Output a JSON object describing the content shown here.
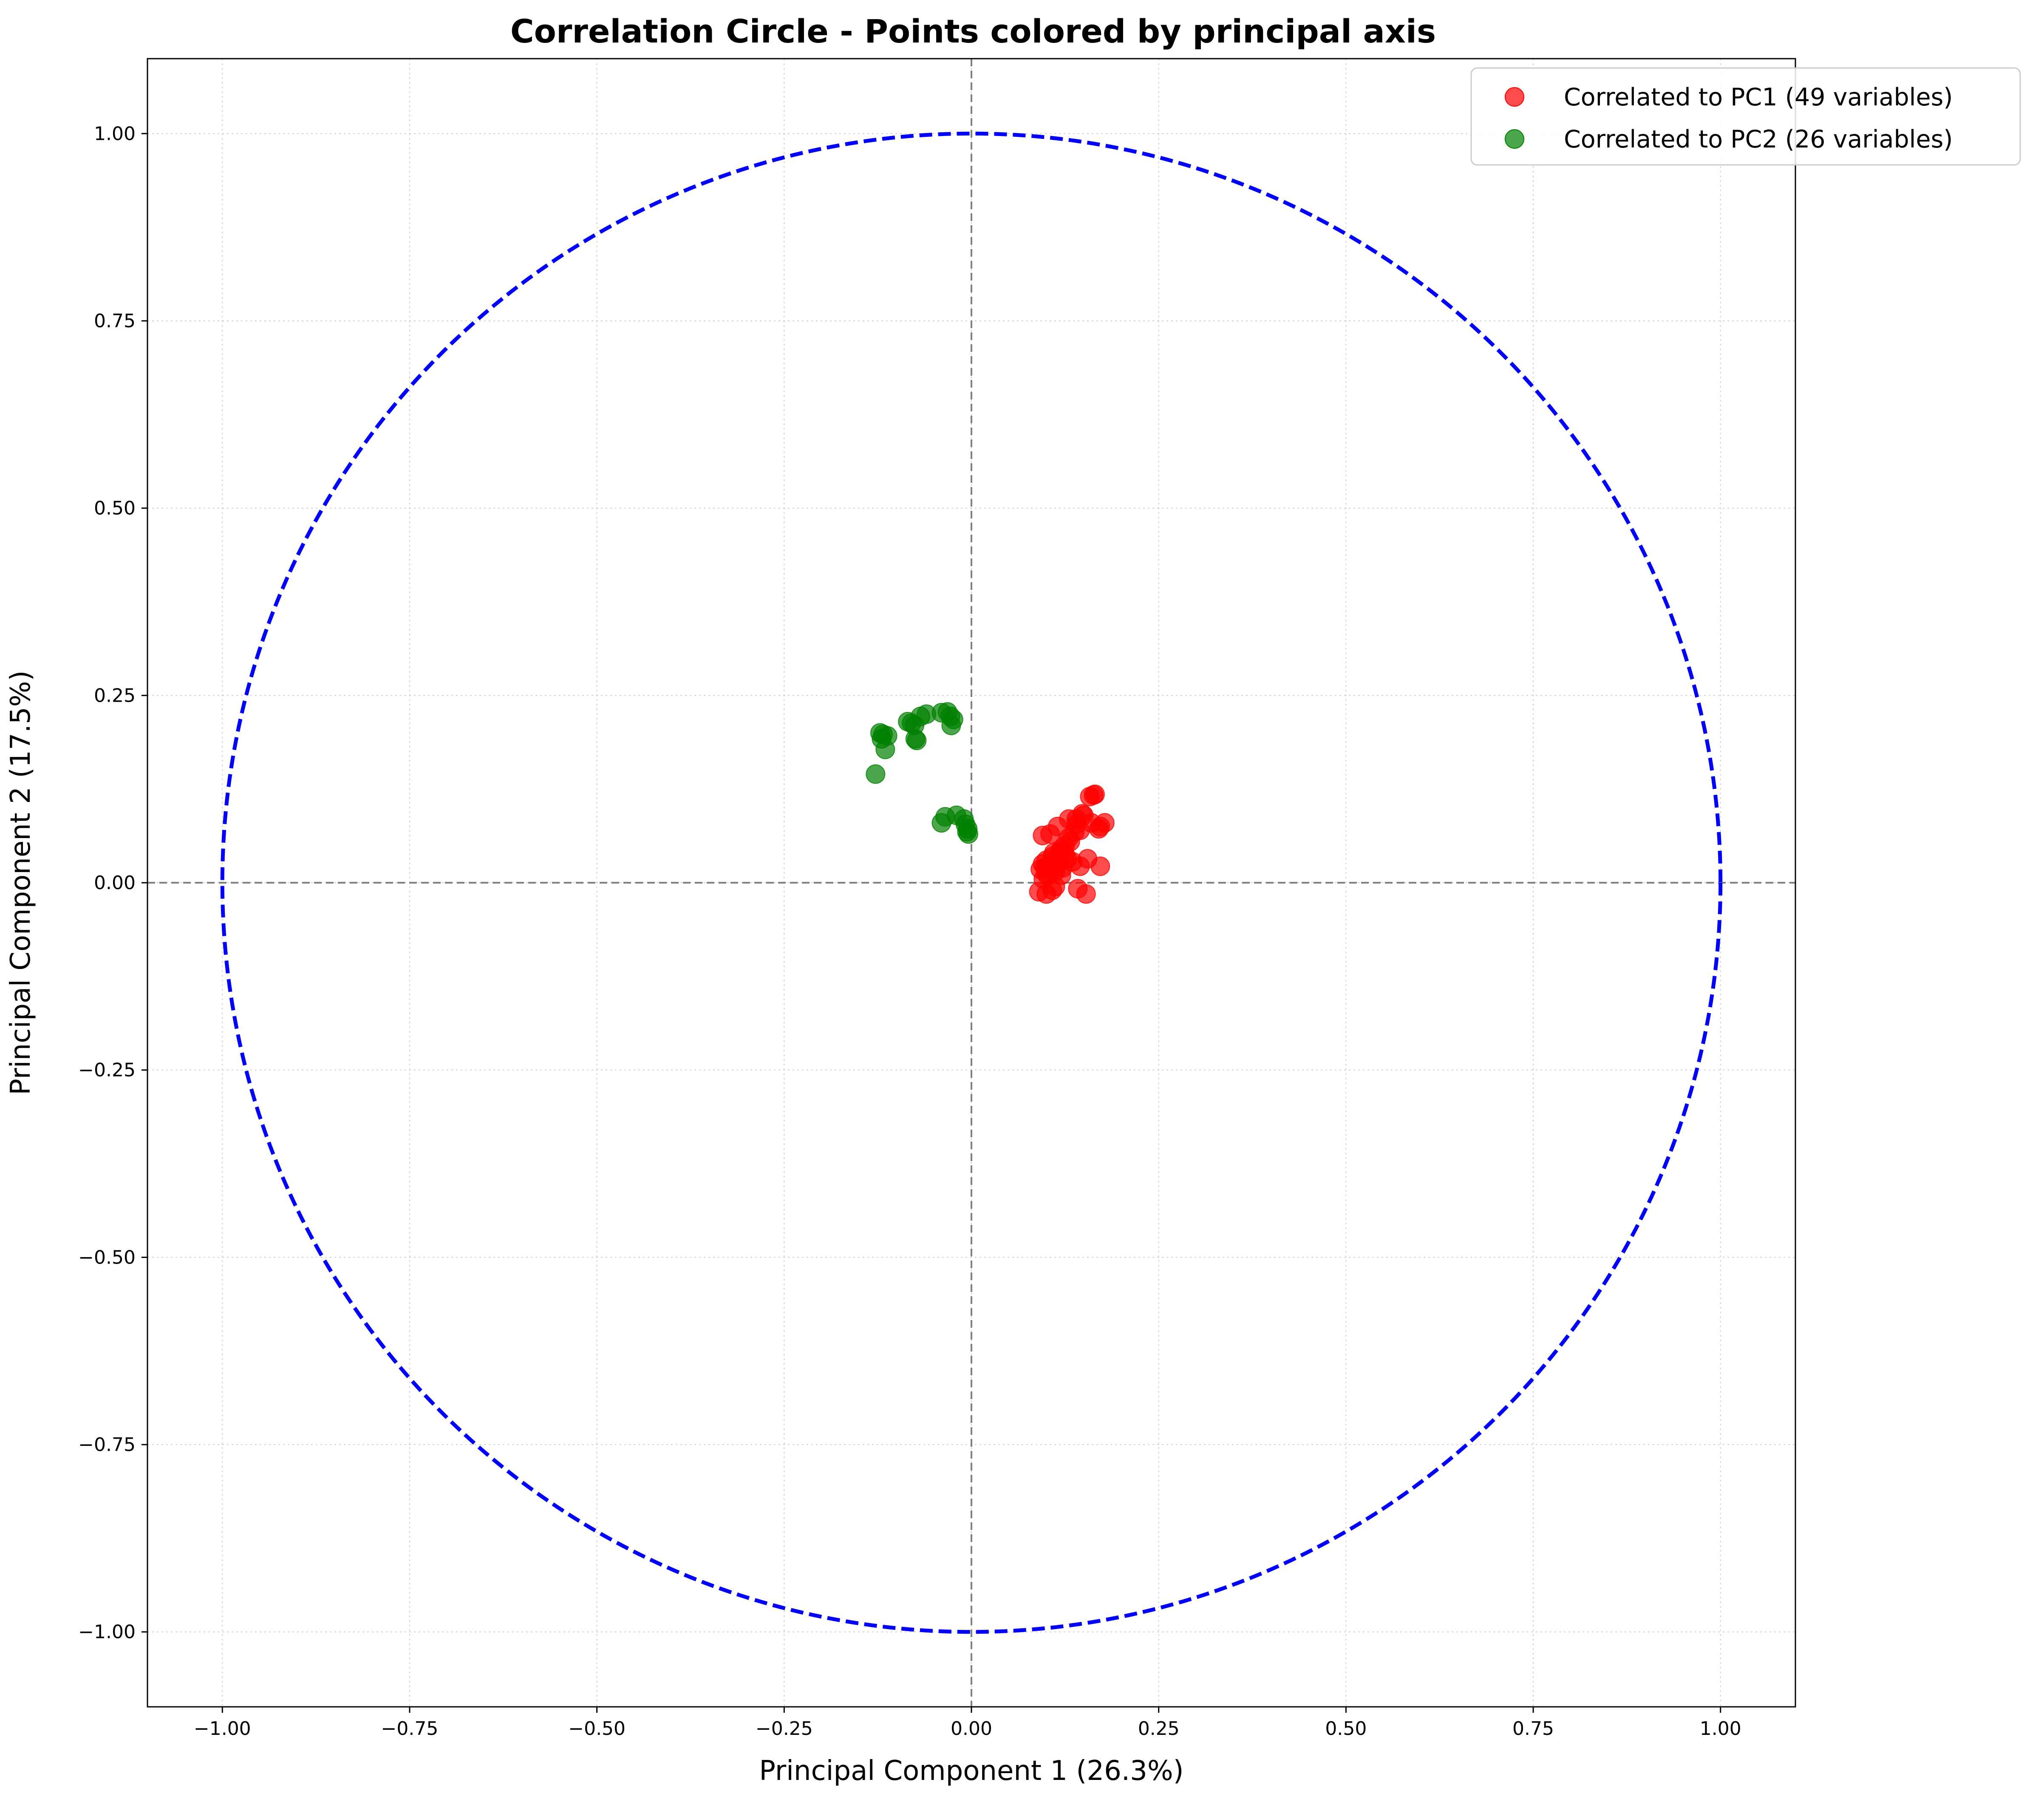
{
  "chart_data": {
    "type": "scatter",
    "title": "Correlation Circle - Points colored by principal axis",
    "xlabel": "Principal Component 1 (26.3%)",
    "ylabel": "Principal Component 2 (17.5%)",
    "xlim": [
      -1.1,
      1.1
    ],
    "ylim": [
      -1.1,
      1.1
    ],
    "xticks": [
      -1.0,
      -0.75,
      -0.5,
      -0.25,
      0.0,
      0.25,
      0.5,
      0.75,
      1.0
    ],
    "yticks": [
      -1.0,
      -0.75,
      -0.5,
      -0.25,
      0.0,
      0.25,
      0.5,
      0.75,
      1.0
    ],
    "xtick_labels": [
      "−1.00",
      "−0.75",
      "−0.50",
      "−0.25",
      "0.00",
      "0.25",
      "0.50",
      "0.75",
      "1.00"
    ],
    "ytick_labels": [
      "−1.00",
      "−0.75",
      "−0.50",
      "−0.25",
      "0.00",
      "0.25",
      "0.50",
      "0.75",
      "1.00"
    ],
    "grid": true,
    "legend_position": "top-right",
    "unit_circle": {
      "radius": 1.0,
      "color": "#0000ff",
      "style": "dashed"
    },
    "reference_lines": {
      "x": 0.0,
      "y": 0.0,
      "color": "#808080",
      "style": "dashed"
    },
    "series": [
      {
        "name": "Correlated to PC1 (49 variables)",
        "color": "#ff0000",
        "points": [
          [
            0.095,
            0.063
          ],
          [
            0.105,
            0.065
          ],
          [
            0.115,
            0.075
          ],
          [
            0.13,
            0.085
          ],
          [
            0.14,
            0.078
          ],
          [
            0.148,
            0.092
          ],
          [
            0.158,
            0.115
          ],
          [
            0.165,
            0.118
          ],
          [
            0.172,
            0.075
          ],
          [
            0.178,
            0.08
          ],
          [
            0.17,
            0.072
          ],
          [
            0.138,
            0.068
          ],
          [
            0.125,
            0.05
          ],
          [
            0.12,
            0.045
          ],
          [
            0.132,
            0.055
          ],
          [
            0.11,
            0.04
          ],
          [
            0.1,
            0.03
          ],
          [
            0.108,
            0.035
          ],
          [
            0.095,
            0.025
          ],
          [
            0.092,
            0.018
          ],
          [
            0.105,
            0.022
          ],
          [
            0.118,
            0.028
          ],
          [
            0.128,
            0.032
          ],
          [
            0.122,
            0.02
          ],
          [
            0.112,
            0.015
          ],
          [
            0.1,
            0.012
          ],
          [
            0.098,
            0.02
          ],
          [
            0.115,
            0.025
          ],
          [
            0.135,
            0.028
          ],
          [
            0.145,
            0.022
          ],
          [
            0.155,
            0.032
          ],
          [
            0.172,
            0.022
          ],
          [
            0.09,
            -0.012
          ],
          [
            0.1,
            -0.015
          ],
          [
            0.108,
            -0.01
          ],
          [
            0.112,
            -0.005
          ],
          [
            0.142,
            -0.008
          ],
          [
            0.153,
            -0.015
          ],
          [
            0.125,
            0.038
          ],
          [
            0.118,
            0.042
          ],
          [
            0.103,
            0.01
          ],
          [
            0.096,
            0.005
          ],
          [
            0.12,
            0.01
          ],
          [
            0.13,
            0.06
          ],
          [
            0.145,
            0.07
          ],
          [
            0.16,
            0.08
          ],
          [
            0.14,
            0.085
          ],
          [
            0.15,
            0.09
          ],
          [
            0.163,
            0.117
          ]
        ]
      },
      {
        "name": "Correlated to PC2 (26 variables)",
        "color": "#008000",
        "points": [
          [
            -0.128,
            0.145
          ],
          [
            -0.115,
            0.178
          ],
          [
            -0.12,
            0.192
          ],
          [
            -0.118,
            0.198
          ],
          [
            -0.112,
            0.196
          ],
          [
            -0.08,
            0.213
          ],
          [
            -0.076,
            0.21
          ],
          [
            -0.068,
            0.222
          ],
          [
            -0.06,
            0.225
          ],
          [
            -0.04,
            0.227
          ],
          [
            -0.032,
            0.228
          ],
          [
            -0.028,
            0.222
          ],
          [
            -0.024,
            0.218
          ],
          [
            -0.027,
            0.21
          ],
          [
            -0.073,
            0.19
          ],
          [
            -0.075,
            0.192
          ],
          [
            -0.04,
            0.08
          ],
          [
            -0.035,
            0.088
          ],
          [
            -0.02,
            0.09
          ],
          [
            -0.01,
            0.085
          ],
          [
            -0.008,
            0.078
          ],
          [
            -0.005,
            0.072
          ],
          [
            -0.004,
            0.065
          ],
          [
            -0.006,
            0.068
          ],
          [
            -0.085,
            0.215
          ],
          [
            -0.122,
            0.2
          ]
        ]
      }
    ]
  }
}
